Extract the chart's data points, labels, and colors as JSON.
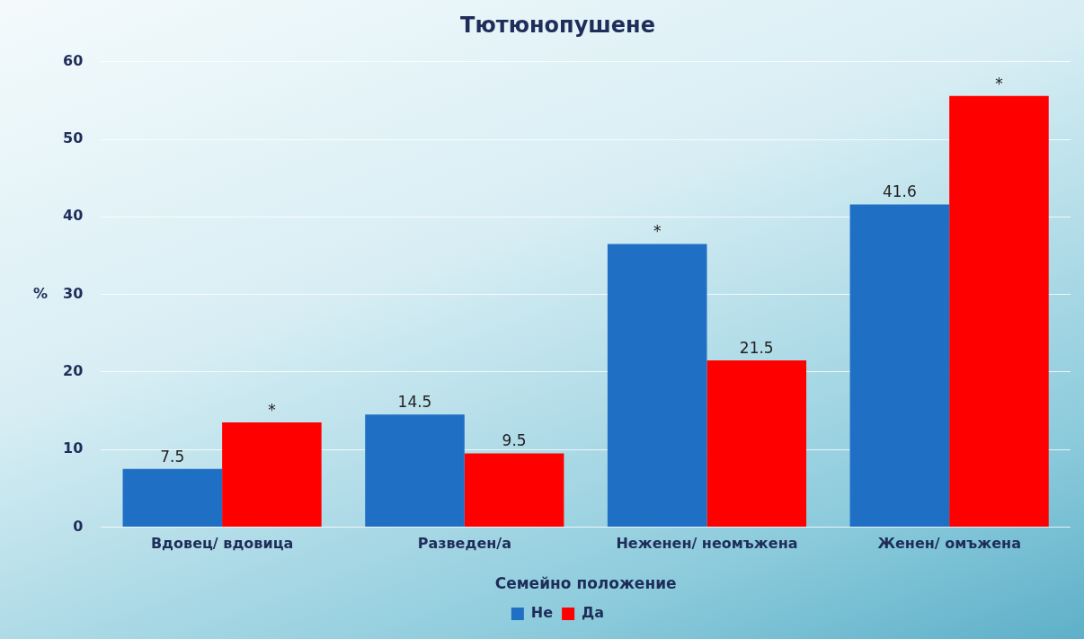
{
  "chart_data": {
    "type": "bar",
    "title": "Тютюнопушене",
    "xlabel": "Семейно положение",
    "ylabel": "%",
    "categories": [
      "Вдовец/ вдовица",
      "Разведен/а",
      "Неженен/ неомъжена",
      "Женен/ омъжена"
    ],
    "series": [
      {
        "name": "Не",
        "color": "#1f6fc5",
        "values": [
          7.5,
          14.5,
          36.5,
          41.6
        ],
        "value_labels": [
          "7.5",
          "14.5",
          "*",
          "41.6"
        ]
      },
      {
        "name": "Да",
        "color": "#ff0000",
        "values": [
          13.5,
          9.5,
          21.5,
          55.6
        ],
        "value_labels": [
          "*",
          "9.5",
          "21.5",
          "*"
        ]
      }
    ],
    "ylim": [
      0,
      60
    ],
    "yticks": [
      0,
      10,
      20,
      30,
      40,
      50,
      60
    ],
    "grid": "y",
    "legend": "bottom"
  }
}
